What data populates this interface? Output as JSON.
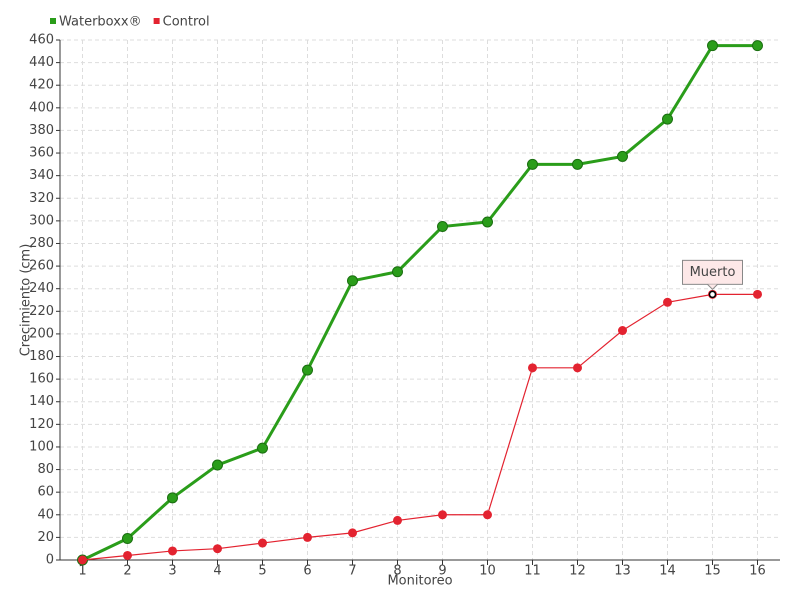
{
  "chart_data": {
    "type": "line",
    "x_label": "Monitoreo",
    "y_label": "Crecimiento (cm)",
    "categories": [
      "1",
      "2",
      "3",
      "4",
      "5",
      "6",
      "7",
      "8",
      "9",
      "10",
      "11",
      "12",
      "13",
      "14",
      "15",
      "16"
    ],
    "series": [
      {
        "name": "Waterboxx®",
        "color": "#2a9d1a",
        "values": [
          0,
          19,
          55,
          84,
          99,
          168,
          247,
          255,
          295,
          299,
          350,
          350,
          357,
          390,
          455,
          455
        ]
      },
      {
        "name": "Control",
        "color": "#e32330",
        "values": [
          0,
          4,
          8,
          10,
          15,
          20,
          24,
          35,
          40,
          40,
          170,
          170,
          203,
          228,
          235,
          235
        ]
      }
    ],
    "ylim": [
      0,
      460
    ],
    "yticks": [
      0,
      20,
      40,
      60,
      80,
      100,
      120,
      140,
      160,
      180,
      200,
      220,
      240,
      260,
      280,
      300,
      320,
      340,
      360,
      380,
      400,
      420,
      440,
      460
    ],
    "grid": true,
    "legend": "top-left",
    "annotations": [
      {
        "text": "Muerto",
        "series": "Control",
        "category": "15"
      }
    ]
  }
}
